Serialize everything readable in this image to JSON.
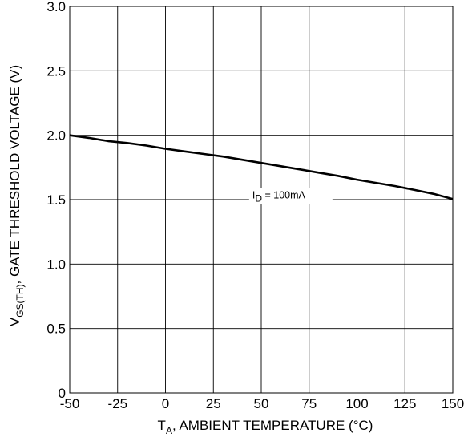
{
  "chart_data": {
    "type": "line",
    "x_axis": {
      "label_main": "T",
      "label_sub": "A",
      "label_rest": ", AMBIENT TEMPERATURE (°C)",
      "min": -50,
      "max": 150,
      "ticks": [
        -50,
        -25,
        0,
        25,
        50,
        75,
        100,
        125,
        150
      ]
    },
    "y_axis": {
      "label_main": "V",
      "label_sub": "GS(TH)",
      "label_rest": ", GATE THRESHOLD VOLTAGE (V)",
      "min": 0,
      "max": 3.0,
      "ticks": [
        0,
        0.5,
        1.0,
        1.5,
        2.0,
        2.5,
        3.0
      ],
      "tick_labels": [
        "0",
        "0.5",
        "1.0",
        "1.5",
        "2.0",
        "2.5",
        "3.0"
      ]
    },
    "grid": true,
    "series": [
      {
        "x": [
          -50,
          -40,
          -30,
          -20,
          -10,
          0,
          10,
          20,
          30,
          40,
          50,
          60,
          70,
          80,
          90,
          100,
          110,
          120,
          130,
          140,
          150
        ],
        "y": [
          2.0,
          1.98,
          1.955,
          1.94,
          1.92,
          1.895,
          1.875,
          1.855,
          1.835,
          1.81,
          1.785,
          1.76,
          1.735,
          1.71,
          1.685,
          1.655,
          1.63,
          1.605,
          1.575,
          1.545,
          1.505
        ]
      }
    ],
    "annotation": {
      "label_main": "I",
      "label_sub": "D",
      "label_rest": " = 100mA",
      "x": 65,
      "y": 1.51
    }
  }
}
